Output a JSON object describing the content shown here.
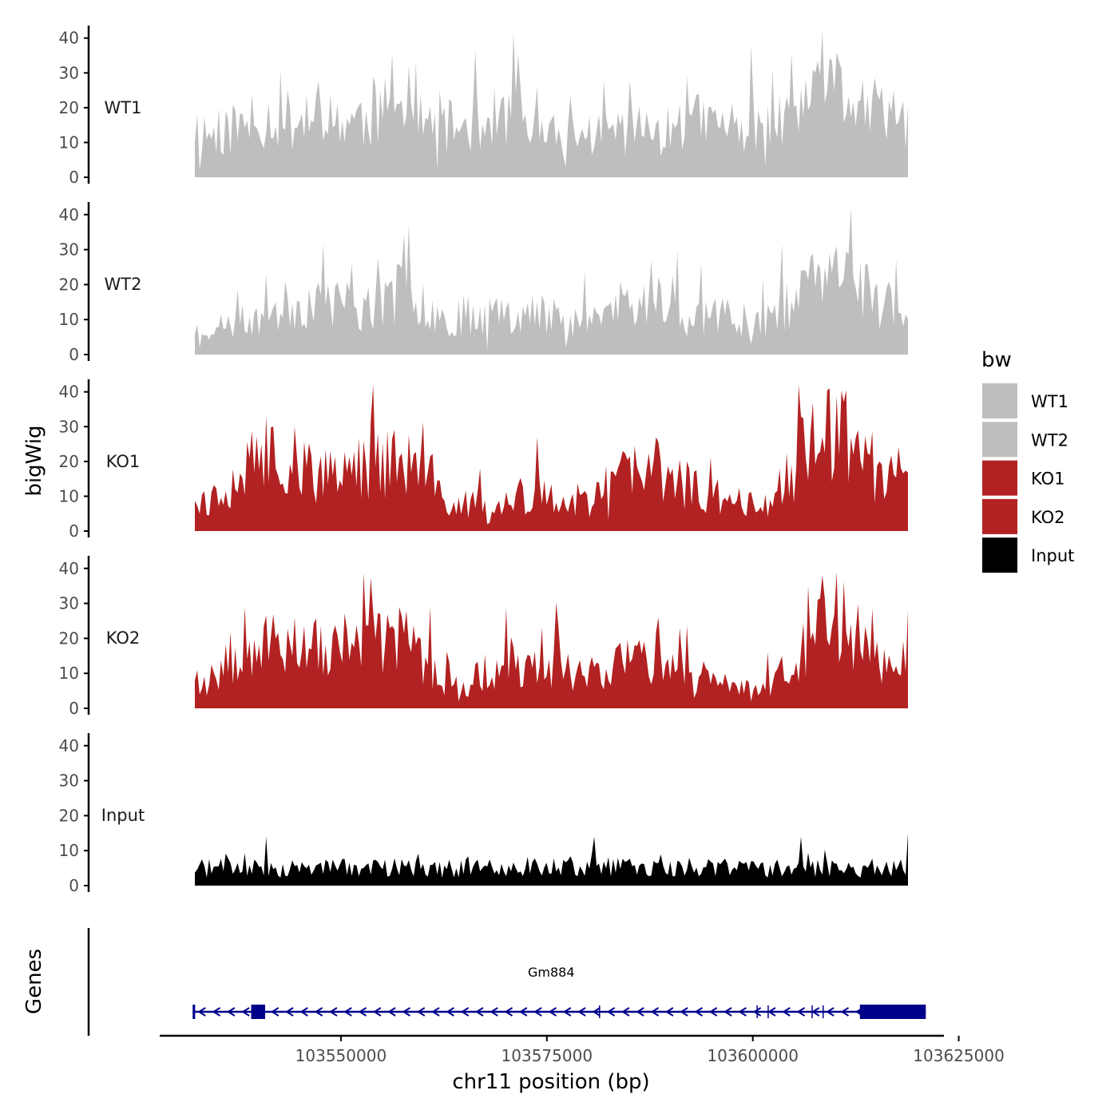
{
  "chart_data": {
    "type": "area",
    "y_axis_title": "bigWig",
    "genes_axis_title": "Genes",
    "x_axis_title": "chr11 position (bp)",
    "x_range": [
      103532000,
      103623000
    ],
    "x_axis_limits": [
      103528000,
      103623200
    ],
    "x_ticks": [
      103550000,
      103575000,
      103600000,
      103625000
    ],
    "x_tick_labels": [
      "103550000",
      "103575000",
      "103600000",
      "103625000"
    ],
    "y_range": [
      0,
      42
    ],
    "y_ticks": [
      0,
      10,
      20,
      30,
      40
    ],
    "y_tick_labels": [
      "0",
      "10",
      "20",
      "30",
      "40"
    ],
    "legend": {
      "title": "bw",
      "entries": [
        {
          "label": "WT1",
          "color": "#bebebe"
        },
        {
          "label": "WT2",
          "color": "#bebebe"
        },
        {
          "label": "KO1",
          "color": "#b22222"
        },
        {
          "label": "KO2",
          "color": "#b22222"
        },
        {
          "label": "Input",
          "color": "#000000"
        }
      ]
    },
    "tracks": [
      {
        "name": "WT1",
        "color": "#bebebe",
        "seed": 11,
        "profile": [
          [
            0,
            14
          ],
          [
            0.03,
            12
          ],
          [
            0.1,
            17
          ],
          [
            0.16,
            16
          ],
          [
            0.25,
            17
          ],
          [
            0.3,
            22
          ],
          [
            0.33,
            14
          ],
          [
            0.38,
            15
          ],
          [
            0.45,
            18
          ],
          [
            0.48,
            13
          ],
          [
            0.52,
            11
          ],
          [
            0.6,
            14
          ],
          [
            0.66,
            13
          ],
          [
            0.7,
            16
          ],
          [
            0.75,
            15
          ],
          [
            0.8,
            14
          ],
          [
            0.84,
            17
          ],
          [
            0.9,
            24
          ],
          [
            0.93,
            22
          ],
          [
            0.97,
            16
          ],
          [
            1,
            14
          ]
        ],
        "peaks": [
          [
            0.25,
            29
          ],
          [
            0.3,
            32
          ],
          [
            0.31,
            33
          ],
          [
            0.48,
            26
          ],
          [
            0.61,
            28
          ],
          [
            0.69,
            29
          ],
          [
            0.81,
            31
          ],
          [
            0.9,
            36
          ],
          [
            0.87,
            30
          ],
          [
            0.98,
            25
          ]
        ],
        "dips": [
          [
            0.005,
            2
          ],
          [
            0.34,
            2
          ],
          [
            0.52,
            3
          ],
          [
            0.8,
            3
          ]
        ]
      },
      {
        "name": "WT2",
        "color": "#bebebe",
        "seed": 23,
        "profile": [
          [
            0,
            8
          ],
          [
            0.05,
            8
          ],
          [
            0.1,
            12
          ],
          [
            0.15,
            15
          ],
          [
            0.2,
            15
          ],
          [
            0.25,
            13
          ],
          [
            0.3,
            19
          ],
          [
            0.35,
            10
          ],
          [
            0.4,
            12
          ],
          [
            0.45,
            13
          ],
          [
            0.5,
            11
          ],
          [
            0.55,
            10
          ],
          [
            0.6,
            14
          ],
          [
            0.65,
            12
          ],
          [
            0.7,
            11
          ],
          [
            0.75,
            11
          ],
          [
            0.8,
            10
          ],
          [
            0.85,
            17
          ],
          [
            0.9,
            22
          ],
          [
            0.95,
            16
          ],
          [
            1,
            14
          ]
        ],
        "peaks": [
          [
            0.1,
            23
          ],
          [
            0.22,
            26
          ],
          [
            0.3,
            37
          ],
          [
            0.41,
            25
          ],
          [
            0.64,
            27
          ],
          [
            0.71,
            26
          ],
          [
            0.89,
            29
          ],
          [
            0.9,
            31
          ],
          [
            0.85,
            24
          ]
        ],
        "dips": [
          [
            0.005,
            2
          ],
          [
            0.41,
            1
          ],
          [
            0.52,
            2
          ],
          [
            0.78,
            3
          ]
        ]
      },
      {
        "name": "KO1",
        "color": "#b22222",
        "seed": 37,
        "profile": [
          [
            0,
            12
          ],
          [
            0.02,
            8
          ],
          [
            0.06,
            16
          ],
          [
            0.1,
            22
          ],
          [
            0.14,
            20
          ],
          [
            0.18,
            15
          ],
          [
            0.22,
            18
          ],
          [
            0.27,
            20
          ],
          [
            0.32,
            18
          ],
          [
            0.34,
            10
          ],
          [
            0.38,
            6
          ],
          [
            0.4,
            12
          ],
          [
            0.41,
            4
          ],
          [
            0.45,
            9
          ],
          [
            0.5,
            10
          ],
          [
            0.55,
            8
          ],
          [
            0.6,
            16
          ],
          [
            0.65,
            18
          ],
          [
            0.7,
            12
          ],
          [
            0.75,
            9
          ],
          [
            0.8,
            8
          ],
          [
            0.85,
            20
          ],
          [
            0.88,
            30
          ],
          [
            0.92,
            27
          ],
          [
            0.95,
            15
          ],
          [
            0.98,
            14
          ],
          [
            1,
            15
          ]
        ],
        "peaks": [
          [
            0.1,
            33
          ],
          [
            0.11,
            30
          ],
          [
            0.14,
            30
          ],
          [
            0.27,
            29
          ],
          [
            0.48,
            27
          ],
          [
            0.4,
            18
          ],
          [
            0.85,
            33
          ],
          [
            0.89,
            41
          ],
          [
            0.93,
            29
          ]
        ],
        "dips": [
          [
            0.005,
            5
          ],
          [
            0.41,
            2
          ],
          [
            0.58,
            3
          ],
          [
            0.77,
            5
          ]
        ]
      },
      {
        "name": "KO2",
        "color": "#b22222",
        "seed": 53,
        "profile": [
          [
            0,
            10
          ],
          [
            0.02,
            7
          ],
          [
            0.05,
            15
          ],
          [
            0.1,
            20
          ],
          [
            0.15,
            18
          ],
          [
            0.2,
            16
          ],
          [
            0.25,
            18
          ],
          [
            0.3,
            19
          ],
          [
            0.33,
            8
          ],
          [
            0.38,
            6
          ],
          [
            0.4,
            10
          ],
          [
            0.45,
            12
          ],
          [
            0.5,
            12
          ],
          [
            0.55,
            10
          ],
          [
            0.58,
            12
          ],
          [
            0.62,
            15
          ],
          [
            0.66,
            12
          ],
          [
            0.7,
            8
          ],
          [
            0.74,
            7
          ],
          [
            0.8,
            6
          ],
          [
            0.84,
            14
          ],
          [
            0.88,
            25
          ],
          [
            0.9,
            27
          ],
          [
            0.93,
            22
          ],
          [
            0.97,
            12
          ],
          [
            1,
            16
          ]
        ],
        "peaks": [
          [
            0.07,
            29
          ],
          [
            0.11,
            27
          ],
          [
            0.14,
            26
          ],
          [
            0.33,
            29
          ],
          [
            0.51,
            23
          ],
          [
            0.65,
            26
          ],
          [
            0.68,
            23
          ],
          [
            0.86,
            35
          ],
          [
            0.88,
            38
          ],
          [
            0.9,
            39
          ],
          [
            1,
            28
          ]
        ],
        "dips": [
          [
            0.005,
            4
          ],
          [
            0.37,
            2
          ],
          [
            0.7,
            3
          ],
          [
            0.78,
            2
          ]
        ]
      },
      {
        "name": "Input",
        "color": "#000000",
        "seed": 71,
        "profile": [
          [
            0,
            5
          ],
          [
            0.2,
            5
          ],
          [
            0.4,
            5
          ],
          [
            0.56,
            6
          ],
          [
            0.6,
            5
          ],
          [
            0.8,
            5
          ],
          [
            0.85,
            5.5
          ],
          [
            0.95,
            5
          ],
          [
            1,
            6
          ]
        ],
        "peaks": [
          [
            0.1,
            14
          ],
          [
            0.56,
            15
          ],
          [
            0.56,
            14
          ],
          [
            0.85,
            14
          ],
          [
            1,
            15
          ]
        ],
        "dips": []
      }
    ],
    "genes": [
      {
        "name": "Gm884",
        "start": 103532000,
        "end": 103621000,
        "strand": "-",
        "exons": [
          [
            103532000,
            103532300
          ],
          [
            103539100,
            103540800
          ],
          [
            103613000,
            103621000
          ]
        ]
      }
    ]
  }
}
